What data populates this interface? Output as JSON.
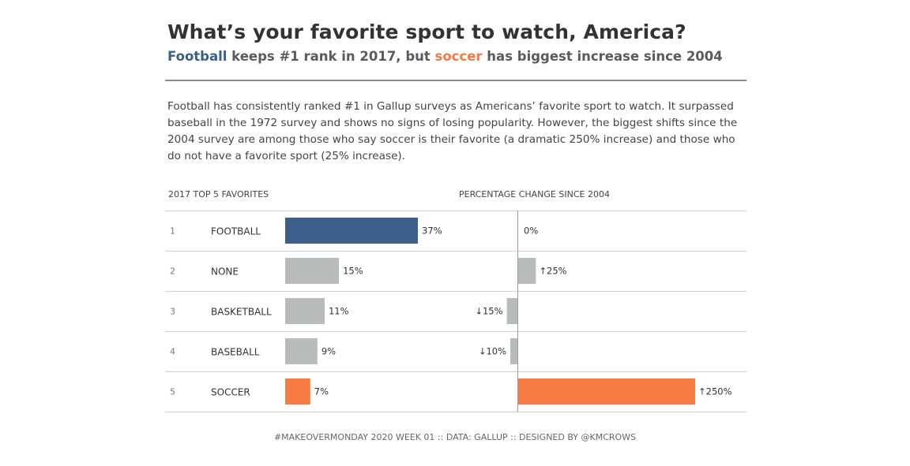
{
  "title": "What’s your favorite sport to watch, America?",
  "subtitle": {
    "part1": "Football",
    "part2": " keeps #1 rank in 2017, but ",
    "part3": "soccer",
    "part4": " has biggest increase since 2004"
  },
  "description": "Football has consistently ranked #1 in Gallup surveys as Americans’ favorite sport to watch. It surpassed baseball in the 1972 survey and shows no signs of losing popularity. However, the biggest shifts since the 2004 survey are among those who say soccer is their favorite (a dramatic 250% increase) and those who do not have a favorite sport (25% increase).",
  "footer": "#MAKEOVERMONDAY 2020 WEEK 01  ::  DATA: GALLUP  ::  DESIGNED BY @KMCROWS",
  "colors": {
    "football": "#3c6089",
    "soccer": "#f47b42",
    "neutral": "#b8bbbc",
    "gridline": "#d0d0d0"
  },
  "chart_data": {
    "type": "bar",
    "panels": [
      {
        "heading": "2017 TOP 5 FAVORITES",
        "measure": "share_2017"
      },
      {
        "heading": "PERCENTAGE CHANGE SINCE 2004",
        "measure": "change_since_2004"
      }
    ],
    "rows": [
      {
        "rank": "1",
        "sport": "FOOTBALL",
        "share_2017": 37,
        "share_label": "37%",
        "change_since_2004": 0,
        "change_label": "0%"
      },
      {
        "rank": "2",
        "sport": "NONE",
        "share_2017": 15,
        "share_label": "15%",
        "change_since_2004": 25,
        "change_label": "↑25%"
      },
      {
        "rank": "3",
        "sport": "BASKETBALL",
        "share_2017": 11,
        "share_label": "11%",
        "change_since_2004": -15,
        "change_label": "↓15%"
      },
      {
        "rank": "4",
        "sport": "BASEBALL",
        "share_2017": 9,
        "share_label": "9%",
        "change_since_2004": -10,
        "change_label": "↓10%"
      },
      {
        "rank": "5",
        "sport": "SOCCER",
        "share_2017": 7,
        "share_label": "7%",
        "change_since_2004": 250,
        "change_label": "↑250%"
      }
    ],
    "share_xlim": [
      0,
      50
    ],
    "change_xlim": [
      -60,
      280
    ],
    "highlight": {
      "FOOTBALL": "football",
      "SOCCER": "soccer"
    }
  }
}
